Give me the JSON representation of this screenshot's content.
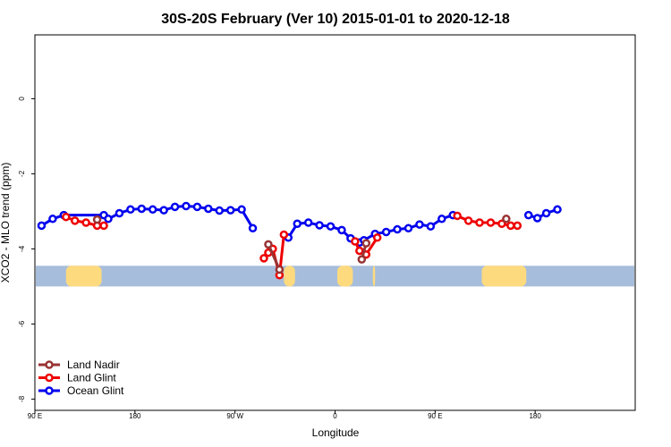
{
  "chart_data": {
    "type": "line",
    "title": "30S-20S February (Ver 10)   2015-01-01 to 2020-12-18",
    "xlabel": "Longitude",
    "ylabel": "XCO2 - MLO trend (ppm)",
    "xlim": [
      -90,
      180
    ],
    "ylim": [
      -8.3,
      1.7
    ],
    "x_ticks": [
      {
        "value": -90,
        "label": "90 E"
      },
      {
        "value": -45,
        "label": "180"
      },
      {
        "value": 0,
        "label": "90 W"
      },
      {
        "value": 45,
        "label": "0"
      },
      {
        "value": 90,
        "label": "90 E"
      },
      {
        "value": 135,
        "label": "180"
      }
    ],
    "y_ticks": [
      {
        "value": 0,
        "label": "0"
      },
      {
        "value": -2,
        "label": "-2"
      },
      {
        "value": -4,
        "label": "-4"
      },
      {
        "value": -6,
        "label": "-6"
      },
      {
        "value": -8,
        "label": "-8"
      }
    ],
    "land_band": {
      "y_top": -4.45,
      "y_bottom": -5.0,
      "ocean_color": "#A6BDDB",
      "land_color": "#FEDA7F"
    },
    "land_regions": [
      [
        -76,
        -60
      ],
      [
        22,
        27
      ],
      [
        46,
        53
      ],
      [
        62,
        63
      ],
      [
        111,
        131
      ]
    ],
    "grid": false,
    "legend_position": "bottom-left",
    "series": [
      {
        "name": "Ocean Glint",
        "color": "#0000EE",
        "segments": [
          [
            [
              -87,
              -3.38
            ],
            [
              -82,
              -3.2
            ],
            [
              -77,
              -3.1
            ],
            [
              -59,
              -3.1
            ],
            [
              -57,
              -3.2
            ],
            [
              -52,
              -3.05
            ],
            [
              -47,
              -2.95
            ],
            [
              -42,
              -2.93
            ],
            [
              -37,
              -2.95
            ],
            [
              -32,
              -2.97
            ],
            [
              -27,
              -2.88
            ],
            [
              -22,
              -2.86
            ],
            [
              -17,
              -2.88
            ],
            [
              -12,
              -2.93
            ],
            [
              -7,
              -2.98
            ],
            [
              -2,
              -2.97
            ],
            [
              3,
              -2.95
            ],
            [
              8,
              -3.45
            ]
          ],
          [
            [
              24,
              -3.7
            ],
            [
              28,
              -3.33
            ],
            [
              33,
              -3.3
            ],
            [
              38,
              -3.37
            ],
            [
              43,
              -3.4
            ],
            [
              48,
              -3.5
            ],
            [
              52,
              -3.72
            ],
            [
              56,
              -3.83
            ],
            [
              58,
              -3.77
            ],
            [
              63,
              -3.6
            ],
            [
              68,
              -3.55
            ],
            [
              73,
              -3.48
            ],
            [
              78,
              -3.45
            ],
            [
              83,
              -3.35
            ],
            [
              88,
              -3.4
            ],
            [
              93,
              -3.2
            ],
            [
              98,
              -3.1
            ]
          ],
          [
            [
              132,
              -3.1
            ],
            [
              136,
              -3.18
            ],
            [
              140,
              -3.05
            ],
            [
              145,
              -2.95
            ]
          ]
        ]
      },
      {
        "name": "Land Glint",
        "color": "#EE0000",
        "segments": [
          [
            [
              -76,
              -3.15
            ],
            [
              -72,
              -3.25
            ],
            [
              -67,
              -3.3
            ],
            [
              -62,
              -3.38
            ],
            [
              -59,
              -3.38
            ]
          ],
          [
            [
              13,
              -4.25
            ],
            [
              15,
              -4.1
            ],
            [
              17,
              -4.0
            ],
            [
              20,
              -4.7
            ],
            [
              22,
              -3.62
            ]
          ],
          [
            [
              54,
              -3.8
            ],
            [
              56,
              -4.05
            ],
            [
              59,
              -4.15
            ],
            [
              64,
              -3.7
            ]
          ],
          [
            [
              100,
              -3.12
            ],
            [
              105,
              -3.25
            ],
            [
              110,
              -3.3
            ],
            [
              115,
              -3.3
            ],
            [
              120,
              -3.33
            ],
            [
              124,
              -3.38
            ],
            [
              127,
              -3.38
            ]
          ]
        ]
      },
      {
        "name": "Land Nadir",
        "color": "#993333",
        "segments": [
          [
            [
              -62,
              -3.22
            ]
          ],
          [
            [
              15,
              -3.88
            ],
            [
              20,
              -4.55
            ]
          ],
          [
            [
              57,
              -4.28
            ],
            [
              59,
              -3.85
            ]
          ],
          [
            [
              122,
              -3.2
            ]
          ]
        ]
      }
    ]
  }
}
